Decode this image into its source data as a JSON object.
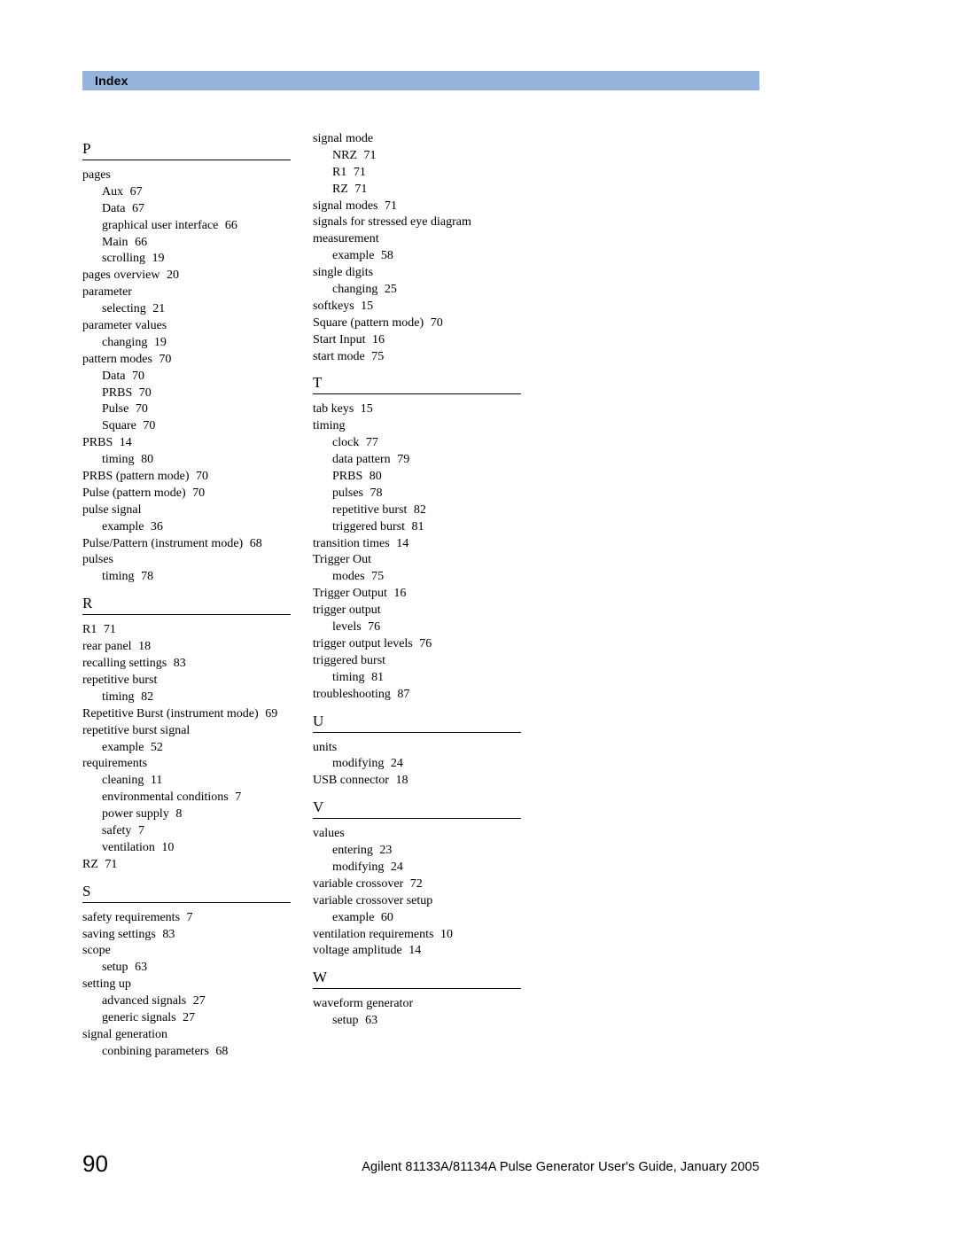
{
  "header": {
    "title": "Index",
    "bg_color": "#94b4db"
  },
  "footer": {
    "page_number": "90",
    "text": "Agilent 81133A/81134A Pulse Generator User's Guide, January 2005"
  },
  "col1": {
    "sections": [
      {
        "letter": "P",
        "entries": [
          {
            "t": "pages",
            "subs": [
              {
                "t": "Aux",
                "p": "67"
              },
              {
                "t": "Data",
                "p": "67"
              },
              {
                "t": "graphical user interface",
                "p": "66"
              },
              {
                "t": "Main",
                "p": "66"
              },
              {
                "t": "scrolling",
                "p": "19"
              }
            ]
          },
          {
            "t": "pages overview",
            "p": "20"
          },
          {
            "t": "parameter",
            "subs": [
              {
                "t": "selecting",
                "p": "21"
              }
            ]
          },
          {
            "t": "parameter values",
            "subs": [
              {
                "t": "changing",
                "p": "19"
              }
            ]
          },
          {
            "t": "pattern modes",
            "p": "70",
            "subs": [
              {
                "t": "Data",
                "p": "70"
              },
              {
                "t": "PRBS",
                "p": "70"
              },
              {
                "t": "Pulse",
                "p": "70"
              },
              {
                "t": "Square",
                "p": "70"
              }
            ]
          },
          {
            "t": "PRBS",
            "p": "14",
            "subs": [
              {
                "t": "timing",
                "p": "80"
              }
            ]
          },
          {
            "t": "PRBS (pattern mode)",
            "p": "70"
          },
          {
            "t": "Pulse (pattern mode)",
            "p": "70"
          },
          {
            "t": "pulse signal",
            "subs": [
              {
                "t": "example",
                "p": "36"
              }
            ]
          },
          {
            "t": "Pulse/Pattern (instrument mode)",
            "p": "68"
          },
          {
            "t": "pulses",
            "subs": [
              {
                "t": "timing",
                "p": "78"
              }
            ]
          }
        ]
      },
      {
        "letter": "R",
        "entries": [
          {
            "t": "R1",
            "p": "71"
          },
          {
            "t": "rear panel",
            "p": "18"
          },
          {
            "t": "recalling settings",
            "p": "83"
          },
          {
            "t": "repetitive burst",
            "subs": [
              {
                "t": "timing",
                "p": "82"
              }
            ]
          },
          {
            "t": "Repetitive Burst (instrument mode)",
            "p": "69"
          },
          {
            "t": "repetitive burst signal",
            "subs": [
              {
                "t": "example",
                "p": "52"
              }
            ]
          },
          {
            "t": "requirements",
            "subs": [
              {
                "t": "cleaning",
                "p": "11"
              },
              {
                "t": "environmental conditions",
                "p": "7"
              },
              {
                "t": "power supply",
                "p": "8"
              },
              {
                "t": "safety",
                "p": "7"
              },
              {
                "t": "ventilation",
                "p": "10"
              }
            ]
          },
          {
            "t": "RZ",
            "p": "71"
          }
        ]
      },
      {
        "letter": "S",
        "entries": [
          {
            "t": "safety requirements",
            "p": "7"
          },
          {
            "t": "saving settings",
            "p": "83"
          },
          {
            "t": "scope",
            "subs": [
              {
                "t": "setup",
                "p": "63"
              }
            ]
          },
          {
            "t": "setting up",
            "subs": [
              {
                "t": "advanced signals",
                "p": "27"
              },
              {
                "t": "generic signals",
                "p": "27"
              }
            ]
          },
          {
            "t": "signal generation",
            "subs": [
              {
                "t": "conbining parameters",
                "p": "68"
              }
            ]
          }
        ]
      }
    ]
  },
  "col2": {
    "pre_entries": [
      {
        "t": "signal mode",
        "subs": [
          {
            "t": "NRZ",
            "p": "71"
          },
          {
            "t": "R1",
            "p": "71"
          },
          {
            "t": "RZ",
            "p": "71"
          }
        ]
      },
      {
        "t": "signal modes",
        "p": "71"
      },
      {
        "t": "signals for stressed eye diagram measurement",
        "wrap": true,
        "subs": [
          {
            "t": "example",
            "p": "58"
          }
        ]
      },
      {
        "t": "single digits",
        "subs": [
          {
            "t": "changing",
            "p": "25"
          }
        ]
      },
      {
        "t": "softkeys",
        "p": "15"
      },
      {
        "t": "Square (pattern mode)",
        "p": "70"
      },
      {
        "t": "Start Input",
        "p": "16"
      },
      {
        "t": "start mode",
        "p": "75"
      }
    ],
    "sections": [
      {
        "letter": "T",
        "entries": [
          {
            "t": "tab keys",
            "p": "15"
          },
          {
            "t": "timing",
            "subs": [
              {
                "t": "clock",
                "p": "77"
              },
              {
                "t": "data pattern",
                "p": "79"
              },
              {
                "t": "PRBS",
                "p": "80"
              },
              {
                "t": "pulses",
                "p": "78"
              },
              {
                "t": "repetitive burst",
                "p": "82"
              },
              {
                "t": "triggered burst",
                "p": "81"
              }
            ]
          },
          {
            "t": "transition times",
            "p": "14"
          },
          {
            "t": "Trigger Out",
            "subs": [
              {
                "t": "modes",
                "p": "75"
              }
            ]
          },
          {
            "t": "Trigger Output",
            "p": "16"
          },
          {
            "t": "trigger output",
            "subs": [
              {
                "t": "levels",
                "p": "76"
              }
            ]
          },
          {
            "t": "trigger output levels",
            "p": "76"
          },
          {
            "t": "triggered burst",
            "subs": [
              {
                "t": "timing",
                "p": "81"
              }
            ]
          },
          {
            "t": "troubleshooting",
            "p": "87"
          }
        ]
      },
      {
        "letter": "U",
        "entries": [
          {
            "t": "units",
            "subs": [
              {
                "t": "modifying",
                "p": "24"
              }
            ]
          },
          {
            "t": "USB connector",
            "p": "18"
          }
        ]
      },
      {
        "letter": "V",
        "entries": [
          {
            "t": "values",
            "subs": [
              {
                "t": "entering",
                "p": "23"
              },
              {
                "t": "modifying",
                "p": "24"
              }
            ]
          },
          {
            "t": "variable crossover",
            "p": "72"
          },
          {
            "t": "variable crossover setup",
            "subs": [
              {
                "t": "example",
                "p": "60"
              }
            ]
          },
          {
            "t": "ventilation requirements",
            "p": "10"
          },
          {
            "t": "voltage amplitude",
            "p": "14"
          }
        ]
      },
      {
        "letter": "W",
        "entries": [
          {
            "t": "waveform generator",
            "subs": [
              {
                "t": "setup",
                "p": "63"
              }
            ]
          }
        ]
      }
    ]
  }
}
